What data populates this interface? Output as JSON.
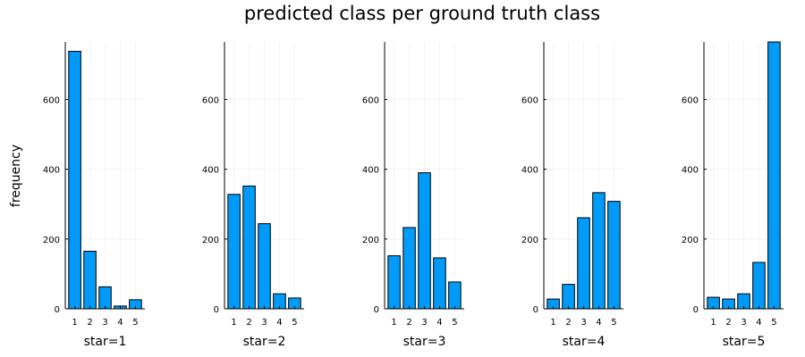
{
  "chart_data": {
    "type": "bar",
    "title": "predicted class per ground truth class",
    "ylabel": "frequency",
    "ylim": [
      0,
      765
    ],
    "yticks": [
      0,
      200,
      400,
      600
    ],
    "grid": true,
    "legend": "none",
    "bar_color": "#009af9",
    "categories": [
      "1",
      "2",
      "3",
      "4",
      "5"
    ],
    "panels": [
      {
        "xlabel": "star=1",
        "values": [
          738,
          165,
          63,
          8,
          26
        ]
      },
      {
        "xlabel": "star=2",
        "values": [
          328,
          352,
          244,
          43,
          31
        ]
      },
      {
        "xlabel": "star=3",
        "values": [
          152,
          233,
          390,
          146,
          77
        ]
      },
      {
        "xlabel": "star=4",
        "values": [
          28,
          70,
          261,
          333,
          308
        ]
      },
      {
        "xlabel": "star=5",
        "values": [
          33,
          28,
          43,
          133,
          780
        ]
      }
    ]
  }
}
